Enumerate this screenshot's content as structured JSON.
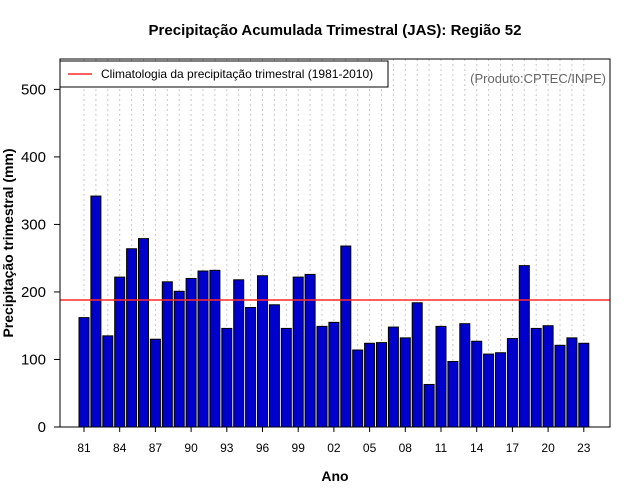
{
  "colors": {
    "bar_fill": "#0000cc",
    "bar_stroke": "#000000",
    "climatology_line": "#ff2a2a",
    "grid": "#c8c8c8",
    "source_text": "#666666"
  },
  "chart_data": {
    "type": "bar",
    "title": "Precipitação Acumulada Trimestral (JAS): Região 52",
    "xlabel": "Ano",
    "ylabel": "Precipitação trimestral (mm)",
    "ylim": [
      0,
      545
    ],
    "yticks": [
      0,
      100,
      200,
      300,
      400,
      500
    ],
    "grid": "vertical dotted at every year",
    "source_note": "(Produto:CPTEC/INPE)",
    "legend": {
      "position": "top-left",
      "entries": [
        {
          "label": "Climatologia da precipitação trimestral (1981-2010)",
          "type": "line"
        }
      ]
    },
    "climatology": 188,
    "categories": [
      "81",
      "82",
      "83",
      "84",
      "85",
      "86",
      "87",
      "88",
      "89",
      "90",
      "91",
      "92",
      "93",
      "94",
      "95",
      "96",
      "97",
      "98",
      "99",
      "00",
      "01",
      "02",
      "03",
      "04",
      "05",
      "06",
      "07",
      "08",
      "09",
      "10",
      "11",
      "12",
      "13",
      "14",
      "15",
      "16",
      "17",
      "18",
      "19",
      "20",
      "21",
      "22",
      "23"
    ],
    "values": [
      162,
      342,
      135,
      222,
      264,
      279,
      130,
      215,
      201,
      220,
      231,
      232,
      146,
      218,
      177,
      224,
      181,
      146,
      222,
      226,
      149,
      155,
      268,
      114,
      124,
      125,
      148,
      132,
      184,
      63,
      149,
      97,
      153,
      127,
      108,
      110,
      131,
      239,
      146,
      150,
      121,
      132,
      124
    ],
    "tick_label_indices": [
      0,
      3,
      6,
      9,
      12,
      15,
      18,
      21,
      24,
      27,
      30,
      33,
      36,
      39,
      42
    ]
  }
}
